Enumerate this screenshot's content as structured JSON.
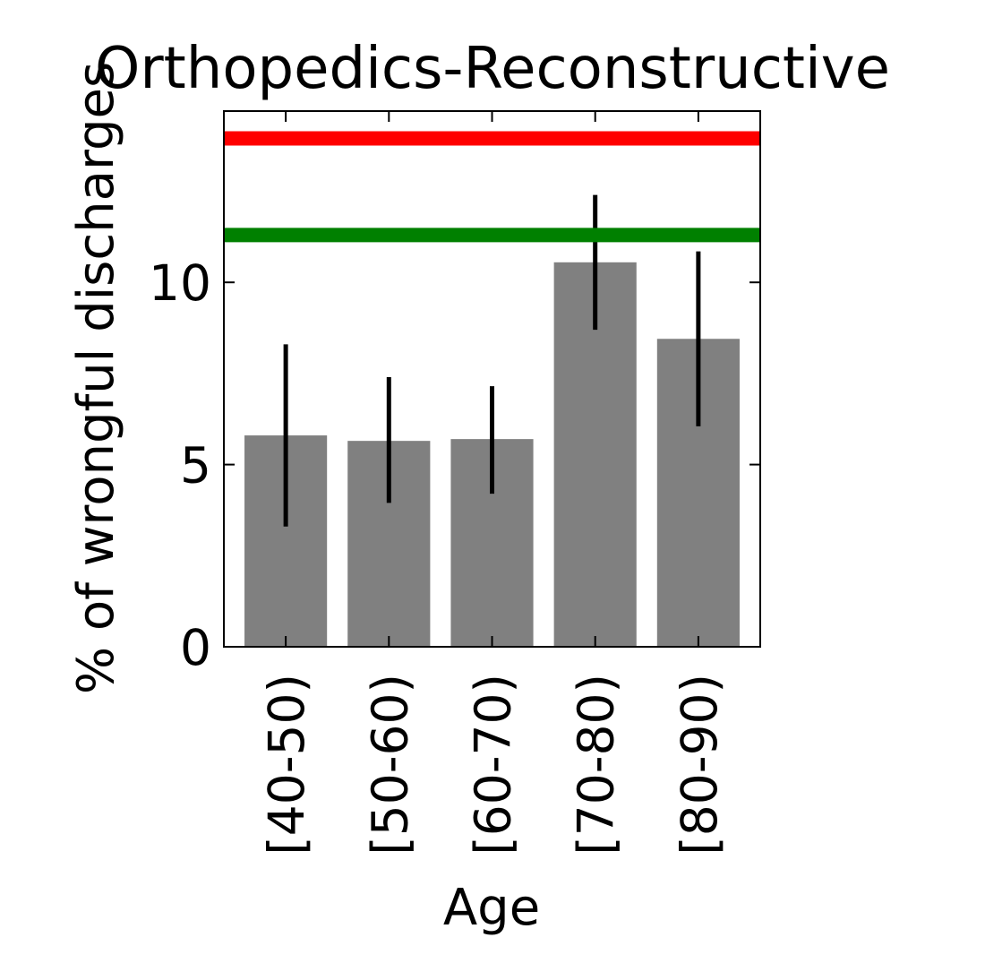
{
  "chart_data": {
    "type": "bar",
    "title": "Orthopedics-Reconstructive",
    "xlabel": "Age",
    "ylabel": "% of wrongful discharges",
    "categories": [
      "[40-50)",
      "[50-60)",
      "[60-70)",
      "[70-80)",
      "[80-90)"
    ],
    "values": [
      5.8,
      5.65,
      5.7,
      10.55,
      8.45
    ],
    "error_low": [
      3.3,
      3.95,
      4.2,
      8.7,
      6.05
    ],
    "error_high": [
      8.3,
      7.4,
      7.15,
      12.4,
      10.85
    ],
    "bar_color": "#808080",
    "error_color": "#000000",
    "reference_lines": [
      {
        "value": 13.95,
        "color": "#ff0000"
      },
      {
        "value": 11.3,
        "color": "#008000"
      }
    ],
    "ylim": [
      0,
      14.7
    ],
    "yticks": [
      0,
      5,
      10
    ],
    "grid": false,
    "legend": "none"
  }
}
